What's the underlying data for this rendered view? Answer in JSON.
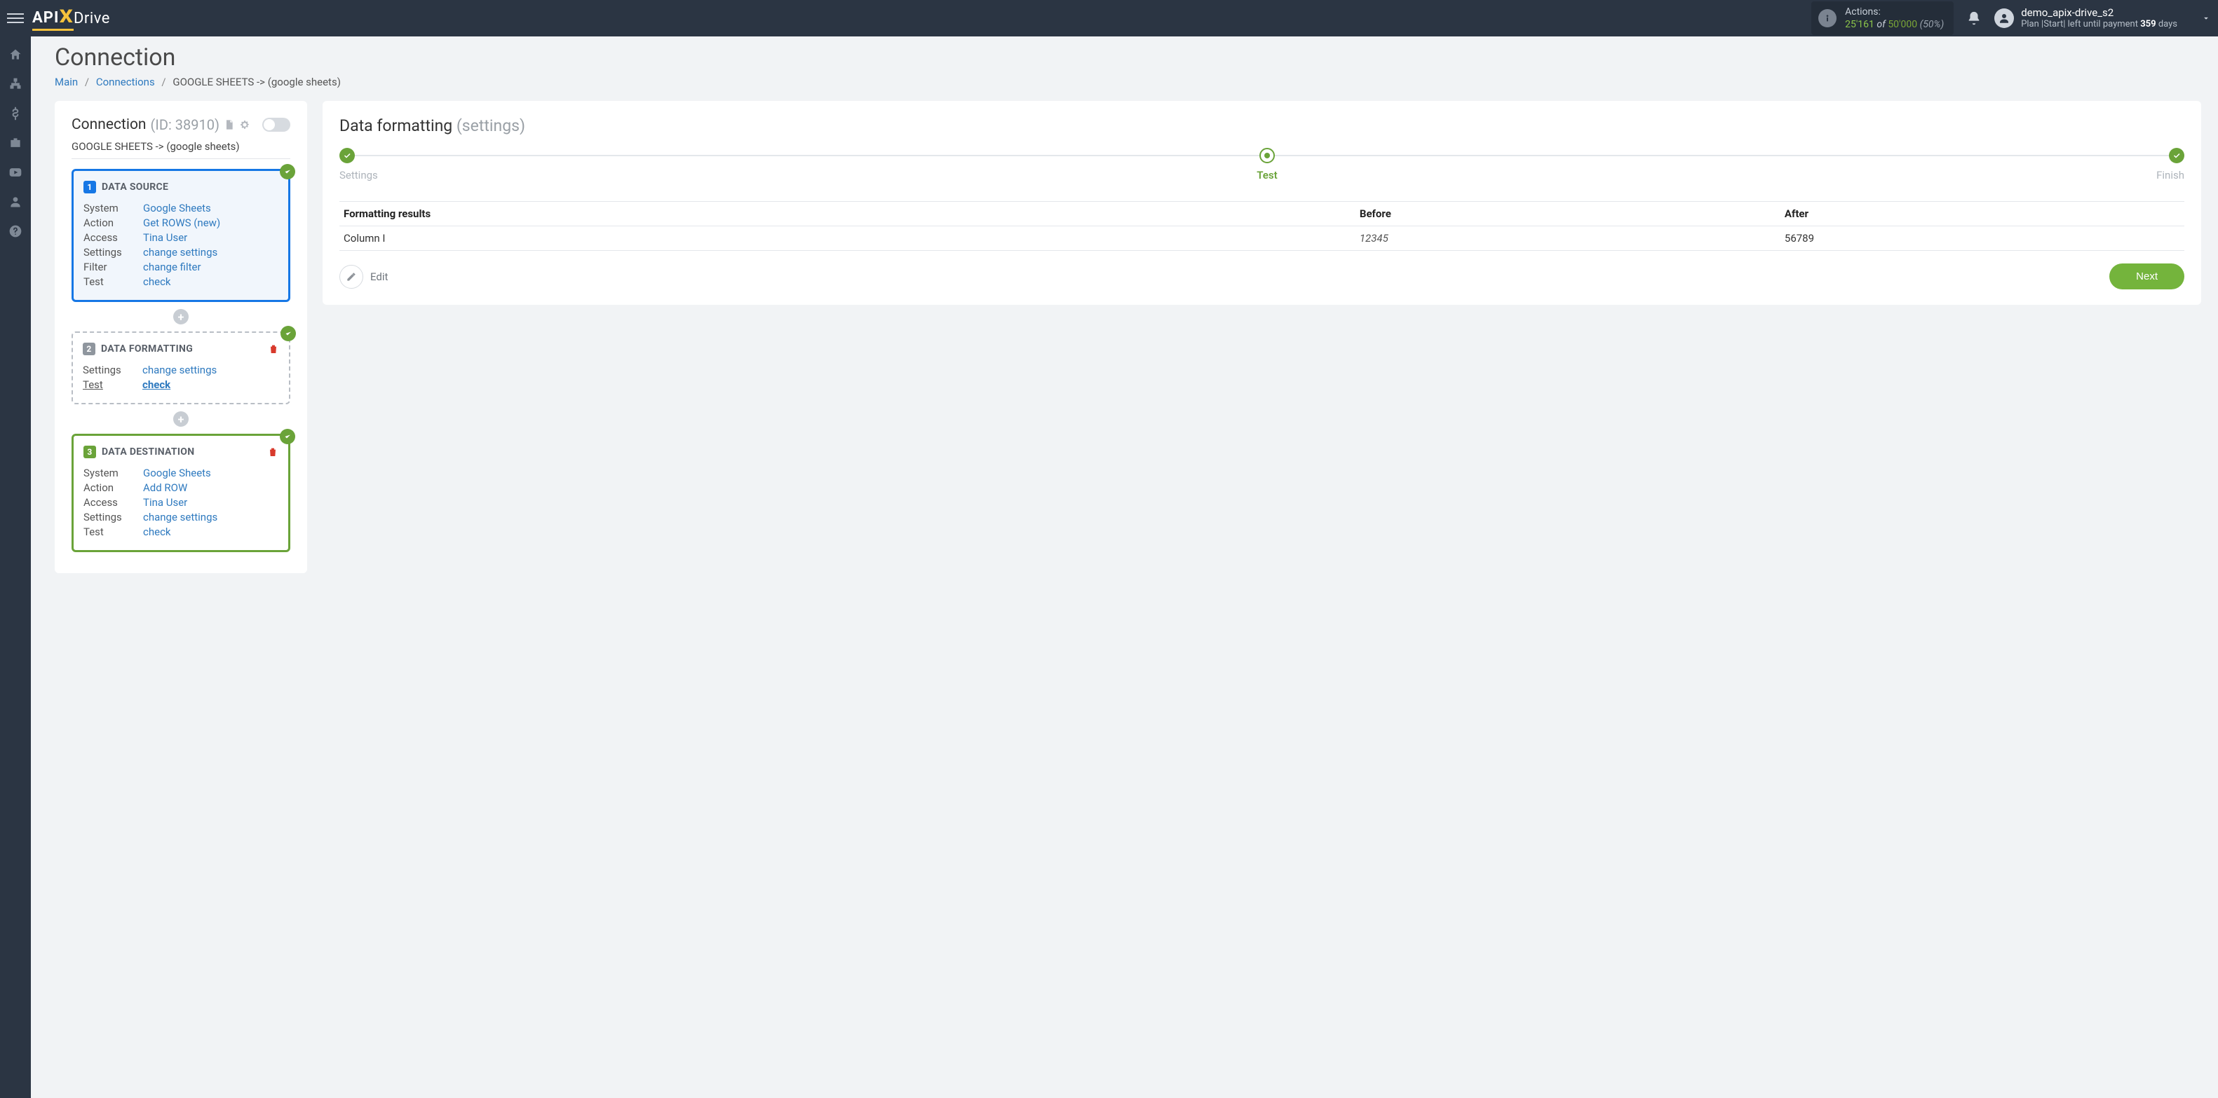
{
  "brand": {
    "api": "API",
    "x": "X",
    "drive": "Drive"
  },
  "topbar": {
    "actions_label": "Actions:",
    "actions_used": "25'161",
    "actions_of": "of",
    "actions_total": "50'000",
    "actions_pct": "(50%)",
    "user_name": "demo_apix-drive_s2",
    "plan_prefix": "Plan |Start| left until payment ",
    "plan_days": "359",
    "plan_suffix": " days"
  },
  "page": {
    "title": "Connection",
    "bc_main": "Main",
    "bc_connections": "Connections",
    "bc_current": "GOOGLE SHEETS -> (google sheets)"
  },
  "left": {
    "title": "Connection",
    "id_label": "(ID: 38910)",
    "subline": "GOOGLE SHEETS -> (google sheets)",
    "source": {
      "num": "1",
      "title": "DATA SOURCE",
      "rows": [
        {
          "k": "System",
          "v": "Google Sheets"
        },
        {
          "k": "Action",
          "v": "Get ROWS (new)"
        },
        {
          "k": "Access",
          "v": "Tina User"
        },
        {
          "k": "Settings",
          "v": "change settings"
        },
        {
          "k": "Filter",
          "v": "change filter"
        },
        {
          "k": "Test",
          "v": "check"
        }
      ]
    },
    "format": {
      "num": "2",
      "title": "DATA FORMATTING",
      "rows": [
        {
          "k": "Settings",
          "v": "change settings"
        },
        {
          "k": "Test",
          "v": "check",
          "bold": true
        }
      ]
    },
    "dest": {
      "num": "3",
      "title": "DATA DESTINATION",
      "rows": [
        {
          "k": "System",
          "v": "Google Sheets"
        },
        {
          "k": "Action",
          "v": "Add ROW"
        },
        {
          "k": "Access",
          "v": "Tina User"
        },
        {
          "k": "Settings",
          "v": "change settings"
        },
        {
          "k": "Test",
          "v": "check"
        }
      ]
    }
  },
  "right": {
    "title": "Data formatting",
    "title_sub": "(settings)",
    "steps": [
      "Settings",
      "Test",
      "Finish"
    ],
    "active_step": 1,
    "table": {
      "headers": [
        "Formatting results",
        "Before",
        "After"
      ],
      "rows": [
        {
          "name": "Column I",
          "before": "12345",
          "after": "56789"
        }
      ]
    },
    "edit_label": "Edit",
    "next_label": "Next"
  },
  "colors": {
    "topbar": "#2b3543",
    "accent_yellow": "#f5c23c",
    "green": "#6aa339",
    "blue": "#1677e5",
    "link": "#2f7abf",
    "next_btn": "#74b43c",
    "bg": "#f1f3f5",
    "border": "#e4e7eb"
  }
}
